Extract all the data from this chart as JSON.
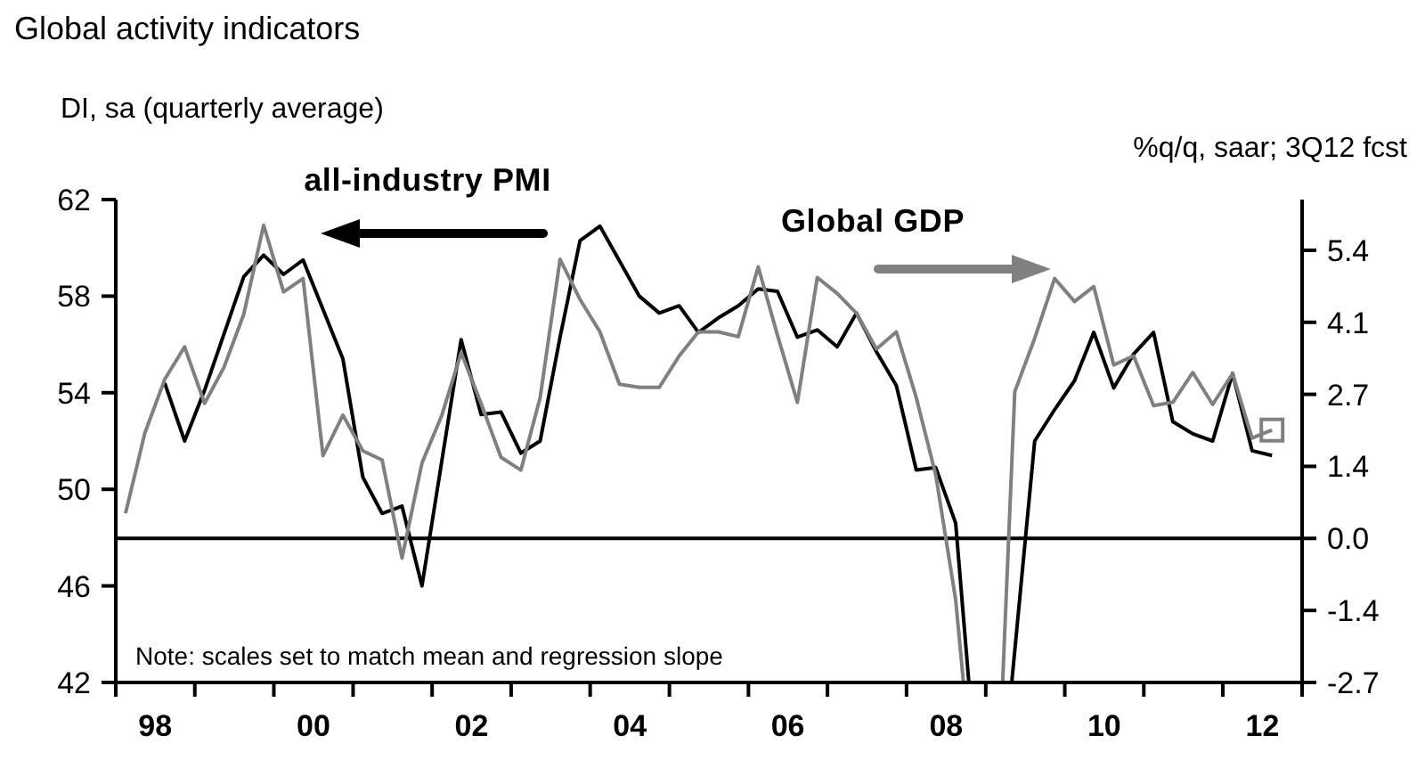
{
  "chart_data": {
    "type": "line",
    "title": "Global activity indicators",
    "ylabel": "DI, sa (quarterly average)",
    "y2label": "%q/q, saar; 3Q12 fcst",
    "annotations": [
      "Note: scales set to match mean and regression slope"
    ],
    "xlim": [
      "1998-01-01",
      "2013-01-01"
    ],
    "xticks": [
      {
        "value": "1998-01-01",
        "label": null
      },
      {
        "value": "1998-07-02",
        "label": "98"
      },
      {
        "value": "1999-01-01",
        "label": null
      },
      {
        "value": "2000-01-01",
        "label": null
      },
      {
        "value": "2000-07-02",
        "label": "00"
      },
      {
        "value": "2001-01-01",
        "label": null
      },
      {
        "value": "2002-01-01",
        "label": null
      },
      {
        "value": "2002-07-02",
        "label": "02"
      },
      {
        "value": "2003-01-01",
        "label": null
      },
      {
        "value": "2004-01-01",
        "label": null
      },
      {
        "value": "2004-07-02",
        "label": "04"
      },
      {
        "value": "2005-01-01",
        "label": null
      },
      {
        "value": "2006-01-01",
        "label": null
      },
      {
        "value": "2006-07-02",
        "label": "06"
      },
      {
        "value": "2007-01-01",
        "label": null
      },
      {
        "value": "2008-01-01",
        "label": null
      },
      {
        "value": "2008-07-02",
        "label": "08"
      },
      {
        "value": "2009-01-01",
        "label": null
      },
      {
        "value": "2010-01-01",
        "label": null
      },
      {
        "value": "2010-07-02",
        "label": "10"
      },
      {
        "value": "2011-01-01",
        "label": null
      },
      {
        "value": "2012-01-01",
        "label": null
      },
      {
        "value": "2012-07-02",
        "label": "12"
      },
      {
        "value": "2013-01-01",
        "label": null
      }
    ],
    "ylim": [
      42,
      62
    ],
    "yticks": [
      42,
      46,
      50,
      54,
      58,
      62
    ],
    "y2lim": [
      -2.7,
      6.35
    ],
    "y2ticks": [
      -2.7,
      {
        "value": -1.35,
        "label": "-1.4"
      },
      {
        "value": 0,
        "label": "0.0"
      },
      {
        "value": 1.35,
        "label": "1.4"
      },
      2.7,
      {
        "value": 4.05,
        "label": "4.1"
      },
      5.4
    ],
    "ref_lines": [
      {
        "axis": "y2",
        "value": 0,
        "color": "#000000"
      }
    ],
    "grid": false,
    "marker": "none",
    "line_style": "solid",
    "series": [
      {
        "name": "all-industry PMI",
        "color": "#000000",
        "axis": "y",
        "x": [
          "1998-08-15",
          "1998-11-15",
          "1999-02-15",
          "1999-08-15",
          "1999-11-15",
          "2000-02-15",
          "2000-05-15",
          "2000-11-15",
          "2001-02-15",
          "2001-05-15",
          "2001-08-15",
          "2001-11-15",
          "2002-05-15",
          "2002-08-15",
          "2002-11-15",
          "2003-02-15",
          "2003-05-15",
          "2003-08-15",
          "2003-11-15",
          "2004-02-15",
          "2004-08-15",
          "2004-11-15",
          "2005-02-15",
          "2005-05-15",
          "2005-08-15",
          "2005-11-15",
          "2006-02-15",
          "2006-05-15",
          "2006-08-15",
          "2006-11-15",
          "2007-02-15",
          "2007-05-15",
          "2007-08-15",
          "2007-11-15",
          "2008-02-15",
          "2008-05-15",
          "2008-08-15",
          "2008-10-15",
          "2009-01-01",
          "2009-05-01",
          "2009-08-15",
          "2009-11-15",
          "2010-02-15",
          "2010-05-15",
          "2010-08-15",
          "2010-11-15",
          "2011-02-15",
          "2011-05-15",
          "2011-08-15",
          "2011-11-15",
          "2012-02-15",
          "2012-05-15",
          "2012-08-15"
        ],
        "values": [
          54.4,
          52.0,
          54.1,
          58.8,
          59.7,
          58.9,
          59.5,
          55.4,
          50.5,
          49.0,
          49.3,
          46.0,
          56.2,
          53.1,
          53.2,
          51.5,
          52.0,
          56.3,
          60.3,
          60.9,
          58.0,
          57.3,
          57.6,
          56.5,
          57.1,
          57.6,
          58.3,
          58.2,
          56.3,
          56.6,
          55.9,
          57.3,
          55.7,
          54.3,
          50.8,
          50.9,
          48.6,
          42,
          null,
          42,
          52.0,
          53.3,
          54.5,
          56.5,
          54.2,
          55.6,
          56.5,
          52.8,
          52.3,
          52.0,
          54.8,
          51.6,
          51.4
        ]
      },
      {
        "name": "Global GDP",
        "color": "#808080",
        "axis": "y2",
        "x": [
          "1998-02-15",
          "1998-05-15",
          "1998-08-15",
          "1998-11-15",
          "1999-02-15",
          "1999-05-15",
          "1999-08-15",
          "1999-11-15",
          "2000-02-15",
          "2000-05-15",
          "2000-08-15",
          "2000-11-15",
          "2001-02-15",
          "2001-05-15",
          "2001-08-15",
          "2001-11-15",
          "2002-02-15",
          "2002-05-15",
          "2002-08-15",
          "2002-11-15",
          "2003-02-15",
          "2003-05-15",
          "2003-08-15",
          "2003-11-15",
          "2004-02-15",
          "2004-05-15",
          "2004-08-15",
          "2004-11-15",
          "2005-02-15",
          "2005-05-15",
          "2005-08-15",
          "2005-11-15",
          "2006-02-15",
          "2006-05-15",
          "2006-08-15",
          "2006-11-15",
          "2007-02-15",
          "2007-05-15",
          "2007-08-15",
          "2007-11-15",
          "2008-02-15",
          "2008-05-15",
          "2008-08-15",
          "2008-09-20",
          "2009-01-01",
          "2009-03-20",
          "2009-05-15",
          "2009-08-15",
          "2009-11-15",
          "2010-02-15",
          "2010-05-15",
          "2010-08-15",
          "2010-11-15",
          "2011-02-15",
          "2011-05-15",
          "2011-08-15",
          "2011-11-15",
          "2012-02-15",
          "2012-05-15",
          "2012-08-15"
        ],
        "values": [
          0.47,
          1.97,
          2.98,
          3.59,
          2.53,
          3.2,
          4.2,
          5.87,
          4.62,
          4.87,
          1.55,
          2.31,
          1.64,
          1.47,
          -0.37,
          1.41,
          2.31,
          3.48,
          2.53,
          1.52,
          1.28,
          2.64,
          5.23,
          4.48,
          3.87,
          2.89,
          2.83,
          2.83,
          3.42,
          3.87,
          3.87,
          3.78,
          5.09,
          3.81,
          2.55,
          4.89,
          4.59,
          4.22,
          3.55,
          3.87,
          2.64,
          1.19,
          -1.15,
          -2.7,
          null,
          -2.7,
          2.75,
          3.75,
          4.87,
          4.44,
          4.72,
          3.25,
          3.42,
          2.49,
          2.55,
          3.11,
          2.51,
          3.09,
          1.88,
          2.03
        ]
      },
      {
        "type": "scatter",
        "marker": "square",
        "color": "#808080",
        "axis": "y2",
        "x": [
          "2012-08-15"
        ],
        "values": [
          2.03
        ]
      }
    ]
  }
}
